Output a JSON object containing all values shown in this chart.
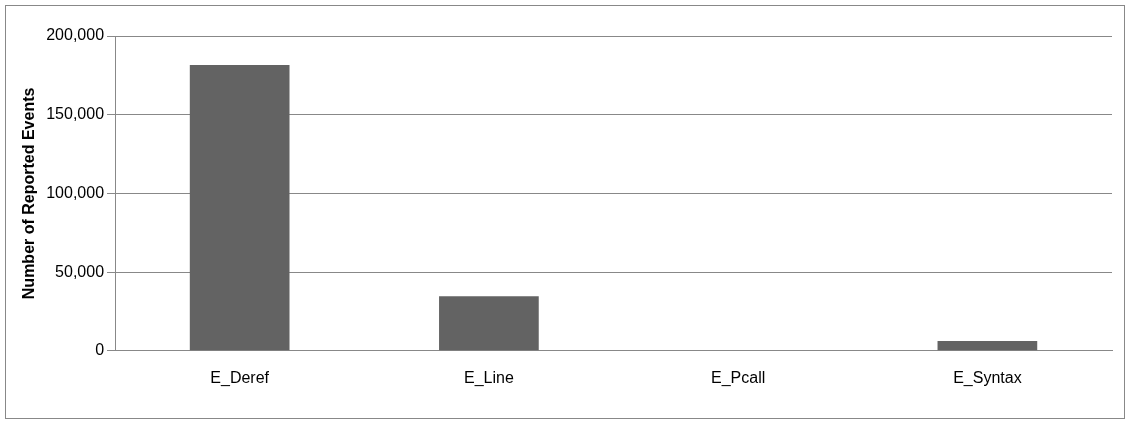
{
  "chart_data": {
    "type": "bar",
    "ylabel": "Number of Reported Events",
    "categories": [
      "E_Deref",
      "E_Line",
      "E_Pcall",
      "E_Syntax"
    ],
    "values": [
      181500,
      34700,
      0,
      6300
    ],
    "color": "#636363",
    "ylim": [
      0,
      200000
    ],
    "yticks": [
      {
        "value": 0,
        "label": "0"
      },
      {
        "value": 50000,
        "label": "50,000"
      },
      {
        "value": 100000,
        "label": "100,000"
      },
      {
        "value": 150000,
        "label": "150,000"
      },
      {
        "value": 200000,
        "label": "200,000"
      }
    ],
    "grid": "y"
  }
}
